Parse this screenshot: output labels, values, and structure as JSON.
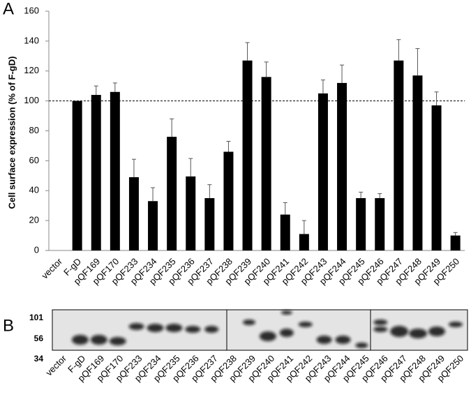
{
  "chart_data": {
    "type": "bar",
    "panel_label": "A",
    "ylabel": "Cell surface expression (% of F-gD)",
    "categories": [
      "vector",
      "F-gD",
      "pQF169",
      "pQF170",
      "pQF233",
      "pQF234",
      "pQF235",
      "pQF236",
      "pQF237",
      "pQF238",
      "pQF239",
      "pQF240",
      "pQF241",
      "pQF242",
      "pQF243",
      "pQF244",
      "pQF245",
      "pQF246",
      "pQF247",
      "pQF248",
      "pQF249",
      "pQF250"
    ],
    "values": [
      0,
      100,
      104,
      106,
      49,
      33,
      76,
      49.5,
      35,
      66,
      127,
      116,
      24,
      11,
      105,
      112,
      35,
      35,
      127,
      117,
      97,
      10
    ],
    "errors": [
      0,
      0,
      6,
      6,
      12,
      9,
      12,
      12,
      9,
      7,
      12,
      10,
      8,
      9,
      9,
      12,
      4,
      3,
      14,
      18,
      9,
      2
    ],
    "color": "#000000",
    "reference_line": 100,
    "ylim": [
      0,
      160
    ],
    "yticks": [
      0,
      20,
      40,
      60,
      80,
      100,
      120,
      140,
      160
    ]
  },
  "blot": {
    "panel_label": "B",
    "markers": [
      "101",
      "56",
      "34"
    ]
  }
}
